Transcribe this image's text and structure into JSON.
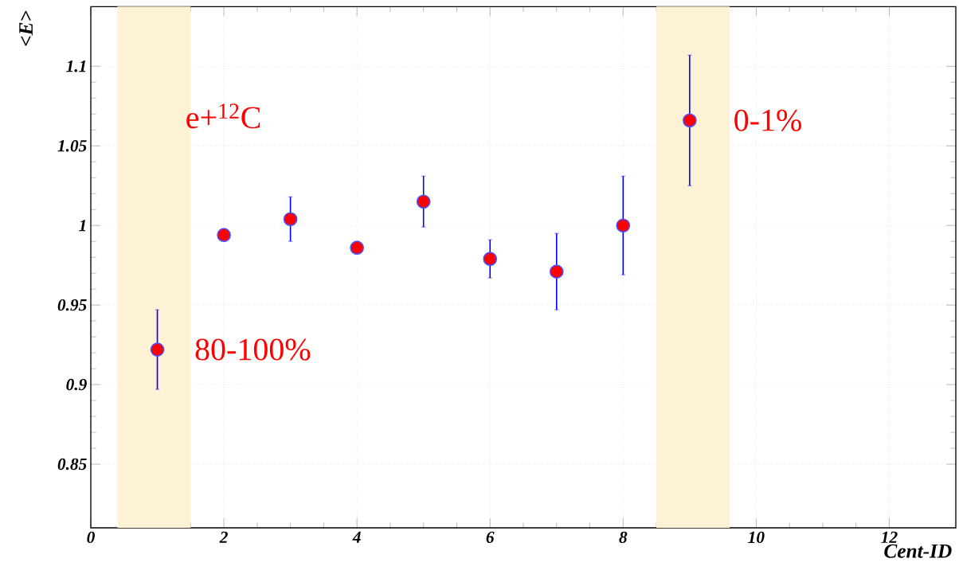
{
  "chart_data": {
    "type": "scatter",
    "xlabel": "Cent-ID",
    "ylabel": "<E>",
    "x": [
      1,
      2,
      3,
      4,
      5,
      6,
      7,
      8,
      9
    ],
    "values": [
      0.922,
      0.994,
      1.004,
      0.986,
      1.015,
      0.979,
      0.971,
      1.0,
      1.066
    ],
    "errors": [
      0.025,
      null,
      0.014,
      null,
      0.016,
      0.012,
      0.024,
      0.031,
      0.041
    ],
    "color": "#ff0000",
    "grid": true,
    "xlim": [
      0,
      13
    ],
    "xticks": [
      0,
      2,
      4,
      6,
      8,
      10,
      12
    ],
    "ylim": [
      0.81,
      1.1375
    ],
    "yticks": [
      0.85,
      0.9,
      0.95,
      1,
      1.05,
      1.1
    ],
    "bands": [
      {
        "axis": "x",
        "from": 0.4,
        "to": 1.5,
        "label": "80-100%",
        "color": "#fdf1d6"
      },
      {
        "axis": "x",
        "from": 8.5,
        "to": 9.6,
        "label": "0-1%",
        "color": "#fdf1d6"
      }
    ],
    "annotations": [
      "e+$^{12}$C"
    ]
  }
}
